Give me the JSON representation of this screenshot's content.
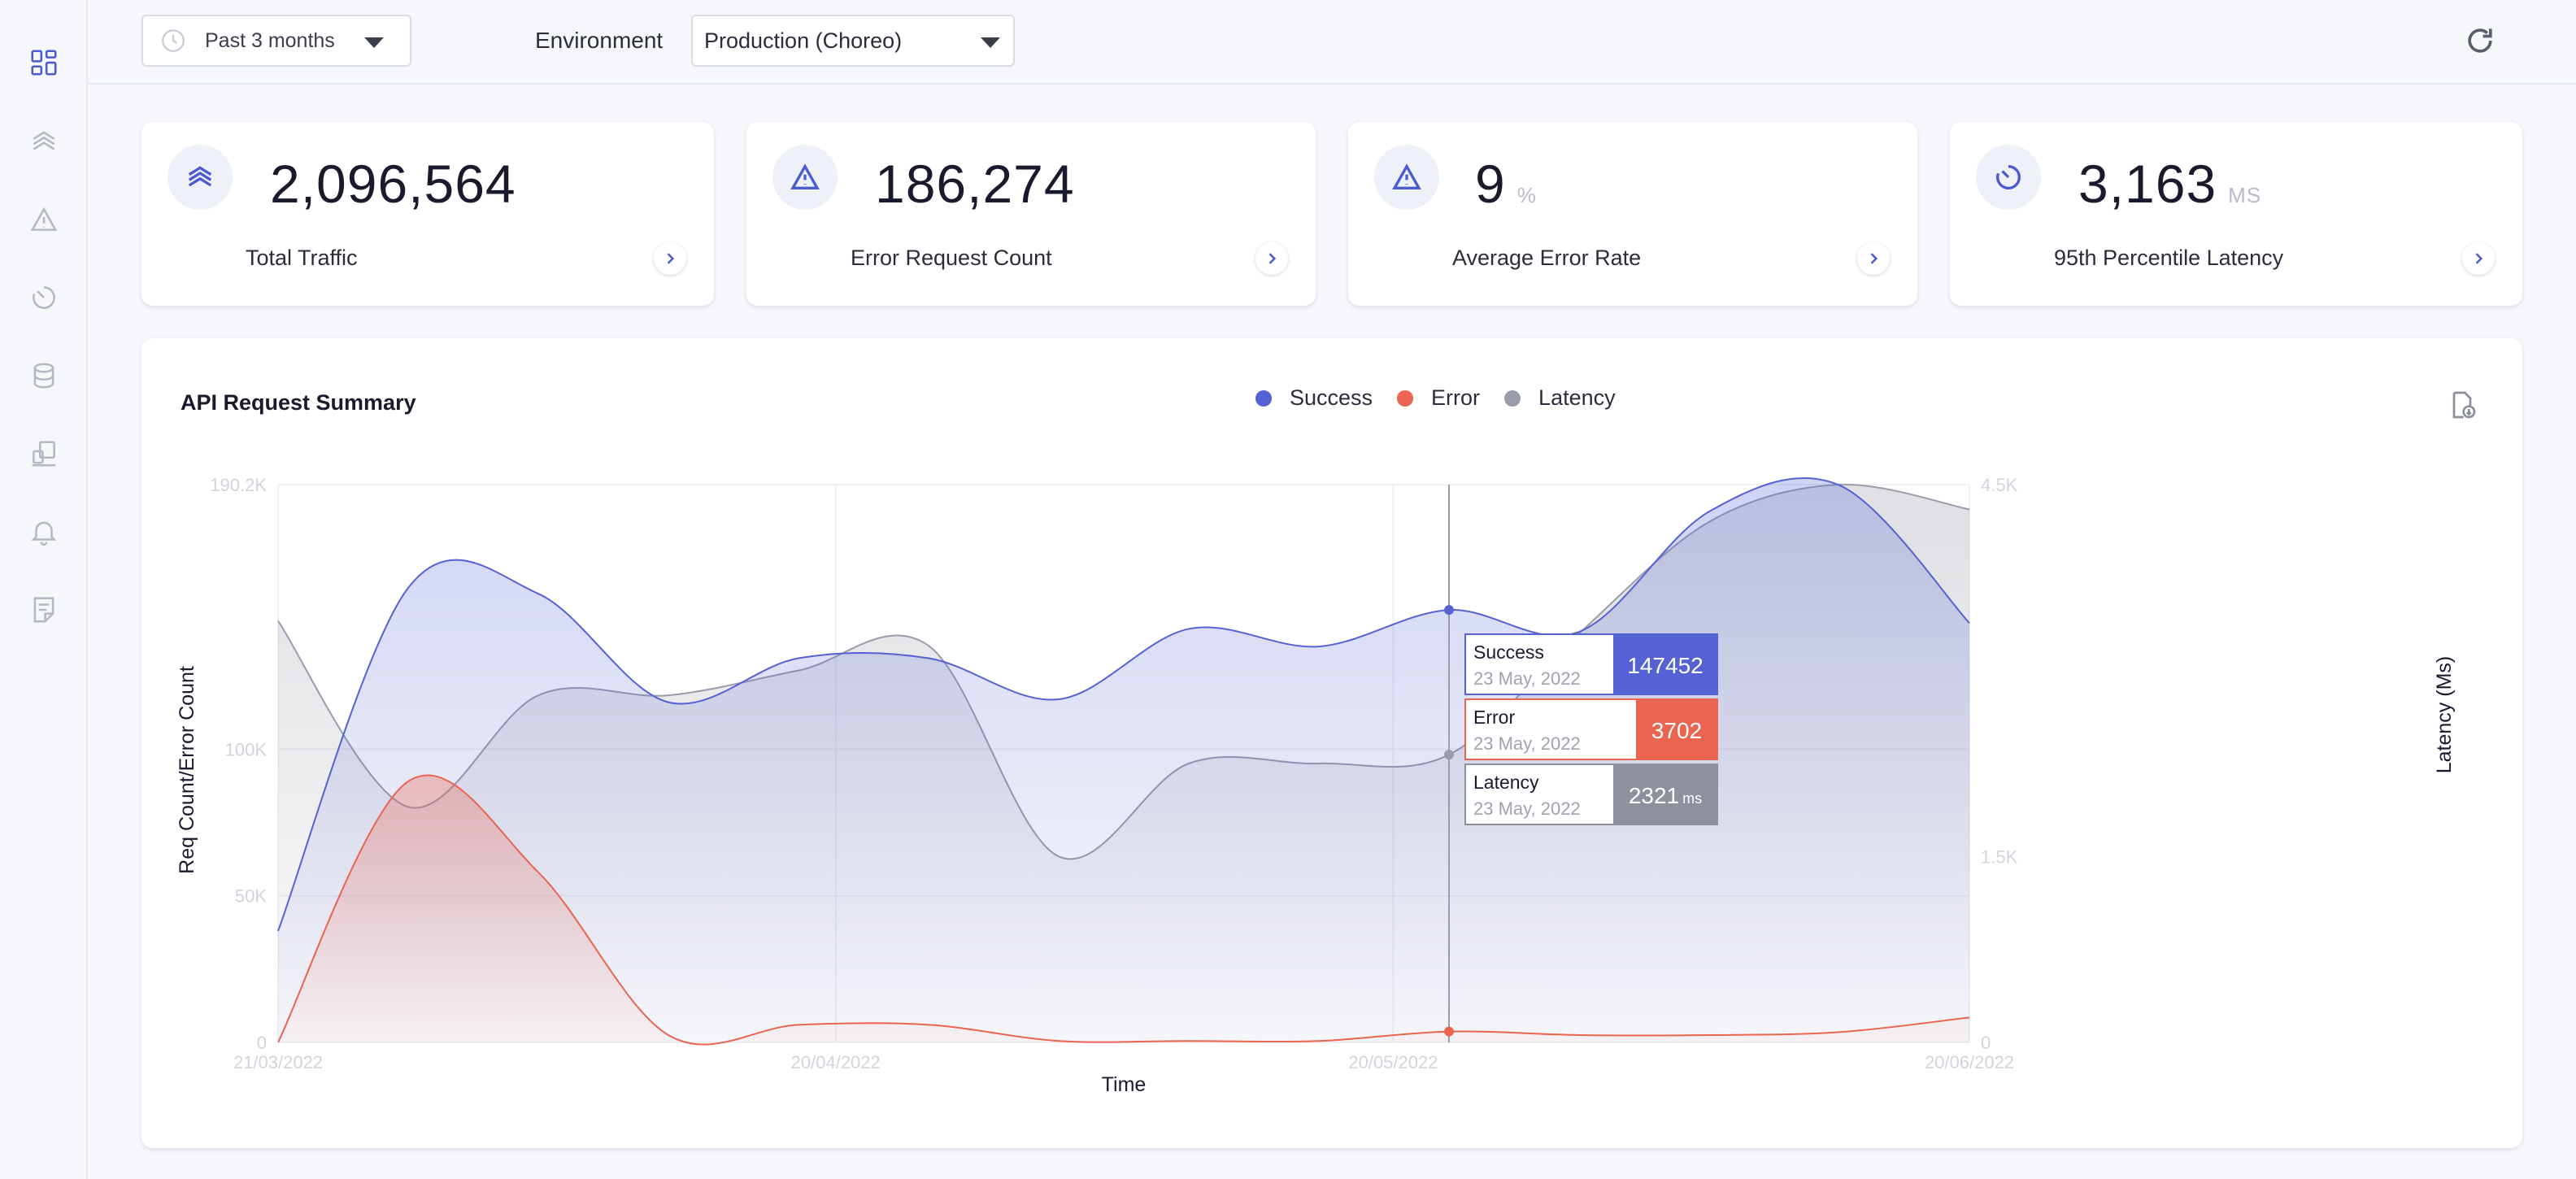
{
  "sidebar": {
    "items": [
      {
        "icon": "dashboard-icon"
      },
      {
        "icon": "traffic-icon"
      },
      {
        "icon": "error-icon"
      },
      {
        "icon": "latency-icon"
      },
      {
        "icon": "database-icon"
      },
      {
        "icon": "devices-icon"
      },
      {
        "icon": "bell-icon"
      },
      {
        "icon": "report-icon"
      }
    ]
  },
  "topbar": {
    "period_label": "Past 3 months",
    "environment_label": "Environment",
    "environment_value": "Production (Choreo)"
  },
  "cards": [
    {
      "value": "2,096,564",
      "unit": "",
      "caption": "Total Traffic",
      "icon": "traffic-icon"
    },
    {
      "value": "186,274",
      "unit": "",
      "caption": "Error Request Count",
      "icon": "warning-icon"
    },
    {
      "value": "9",
      "unit": "%",
      "caption": "Average Error Rate",
      "icon": "warning-icon"
    },
    {
      "value": "3,163",
      "unit": "MS",
      "caption": "95th Percentile Latency",
      "icon": "latency-icon"
    }
  ],
  "colors": {
    "success": "#5462d3",
    "error": "#ea6450",
    "latency": "#9a9cab",
    "accent": "#4a5ad0"
  },
  "chart": {
    "title": "API Request Summary",
    "legend": [
      "Success",
      "Error",
      "Latency"
    ],
    "tooltip": [
      {
        "label": "Success",
        "date": "23 May, 2022",
        "value": "147452",
        "unit": ""
      },
      {
        "label": "Error",
        "date": "23 May, 2022",
        "value": "3702",
        "unit": ""
      },
      {
        "label": "Latency",
        "date": "23 May, 2022",
        "value": "2321",
        "unit": "ms"
      }
    ]
  },
  "chart_data": {
    "type": "area",
    "title": "API Request Summary",
    "xlabel": "Time",
    "ylabel": "Req Count/Error Count",
    "y2label": "Latency (Ms)",
    "x_tick_labels": [
      "21/03/2022",
      "20/04/2022",
      "20/05/2022",
      "20/06/2022"
    ],
    "y_tick_labels": [
      "0",
      "50K",
      "100K",
      "190.2K"
    ],
    "y2_tick_labels": [
      "0",
      "1.5K",
      "4.5K"
    ],
    "ylim": [
      0,
      190200
    ],
    "y2lim": [
      0,
      4500
    ],
    "x": [
      0,
      7,
      14,
      21,
      28,
      35,
      42,
      49,
      56,
      63,
      70,
      77,
      84,
      91
    ],
    "x_unit": "days since 21/03/2022",
    "series": [
      {
        "name": "Success",
        "axis": "left",
        "values": [
          38000,
          155000,
          153000,
          116000,
          131000,
          131000,
          117000,
          141000,
          135000,
          147452,
          140000,
          181000,
          190000,
          143000
        ]
      },
      {
        "name": "Error",
        "axis": "left",
        "values": [
          0,
          89000,
          58000,
          2500,
          6000,
          6000,
          500,
          500,
          500,
          3702,
          2500,
          2500,
          3500,
          8500
        ]
      },
      {
        "name": "Latency",
        "axis": "right",
        "values": [
          3400,
          1900,
          2800,
          2800,
          3000,
          3200,
          1500,
          2250,
          2250,
          2321,
          3300,
          4200,
          4500,
          4300
        ]
      }
    ],
    "grid": true
  }
}
